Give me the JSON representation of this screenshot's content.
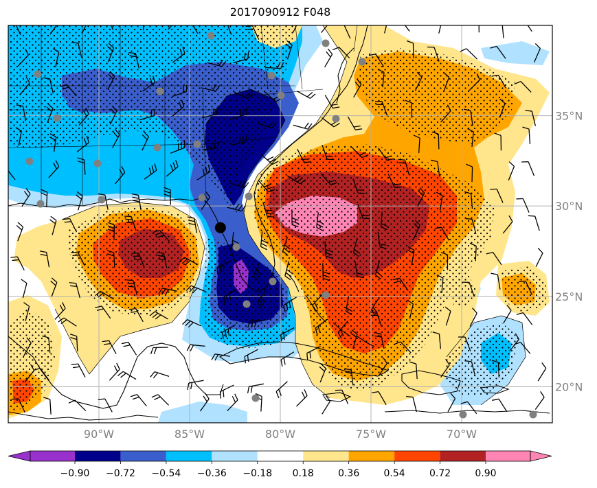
{
  "title": "2017090912 F048",
  "map": {
    "lon_range": [
      -95,
      -65
    ],
    "lat_range": [
      18,
      40
    ],
    "lon_ticks": [
      {
        "value": -90,
        "label": "90°W"
      },
      {
        "value": -85,
        "label": "85°W"
      },
      {
        "value": -80,
        "label": "80°W"
      },
      {
        "value": -75,
        "label": "75°W"
      },
      {
        "value": -70,
        "label": "70°W"
      }
    ],
    "lat_ticks": [
      {
        "value": 35,
        "label": "35°N"
      },
      {
        "value": 30,
        "label": "30°N"
      },
      {
        "value": 25,
        "label": "25°N"
      },
      {
        "value": 20,
        "label": "20°N"
      }
    ],
    "grid": true,
    "tick_label_color": "#808080"
  },
  "colorbar": {
    "orientation": "horizontal",
    "extend": "both",
    "levels": [
      -0.9,
      -0.72,
      -0.54,
      -0.36,
      -0.18,
      0.18,
      0.36,
      0.54,
      0.72,
      0.9
    ],
    "tick_labels": [
      "−0.90",
      "−0.72",
      "−0.54",
      "−0.36",
      "−0.18",
      "0.18",
      "0.36",
      "0.54",
      "0.72",
      "0.90"
    ],
    "colors": [
      "#9932cc",
      "#00008b",
      "#3a5fcd",
      "#00bfff",
      "#b0e2ff",
      "#ffffff",
      "#ffe68c",
      "#ffa500",
      "#ff4500",
      "#b22222",
      "#ff85b4"
    ]
  },
  "features": {
    "stipple": "dots mark significant regions",
    "wind_barbs": "black",
    "station_markers_color": "#808080",
    "storm_center": {
      "lon": -83.3,
      "lat": 28.8,
      "color": "#000000"
    }
  }
}
